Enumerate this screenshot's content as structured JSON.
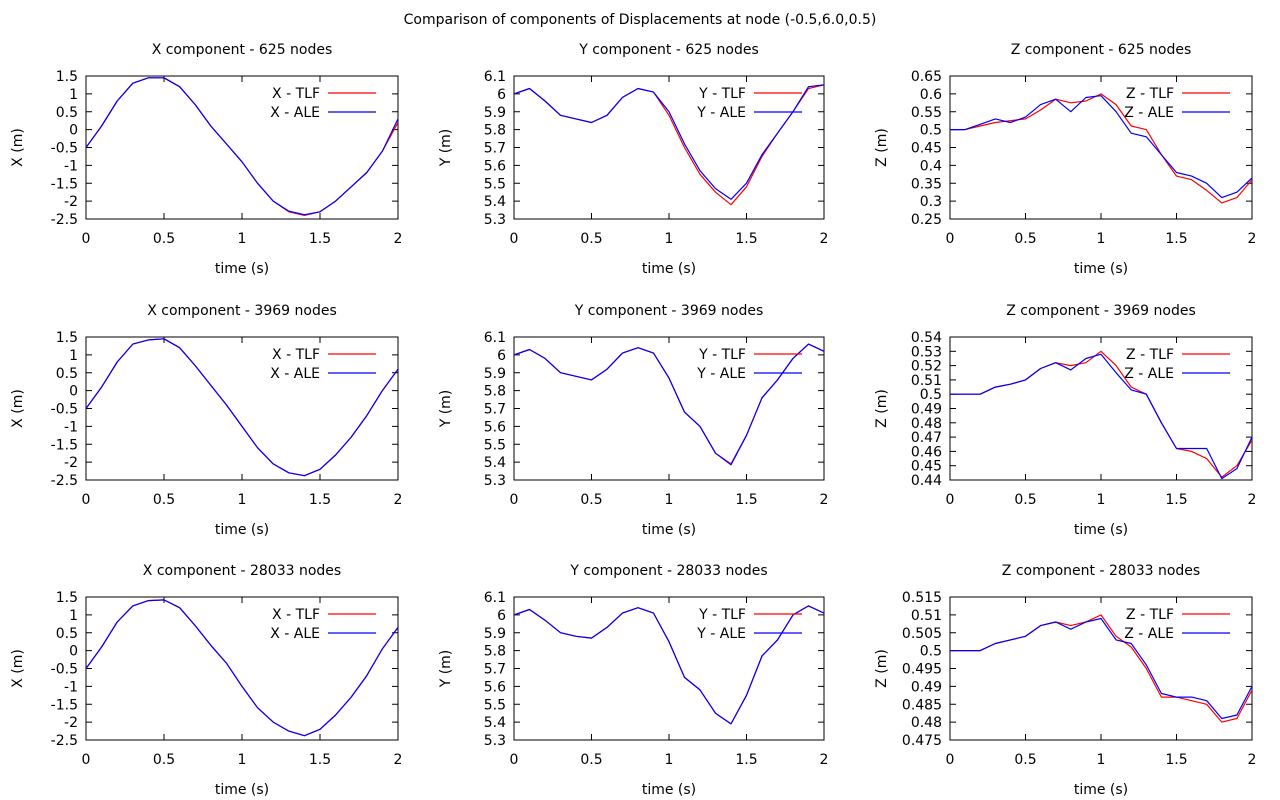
{
  "figure": {
    "title": "Comparison of components of Displacements at node (-0.5,6.0,0.5)"
  },
  "colors": {
    "TLF": "#ff0000",
    "ALE": "#0000ff",
    "axis": "#000000"
  },
  "chart_data": [
    {
      "type": "line",
      "title": "X component - 625 nodes",
      "xlabel": "time (s)",
      "ylabel": "X (m)",
      "xlim": [
        0,
        2
      ],
      "ylim": [
        -2.5,
        1.5
      ],
      "xticks": [
        0,
        0.5,
        1,
        1.5,
        2
      ],
      "yticks": [
        -2.5,
        -2,
        -1.5,
        -1,
        -0.5,
        0,
        0.5,
        1,
        1.5
      ],
      "legend": "top-right",
      "grid": false,
      "x": [
        0,
        0.1,
        0.2,
        0.3,
        0.4,
        0.5,
        0.6,
        0.7,
        0.8,
        0.9,
        1.0,
        1.1,
        1.2,
        1.3,
        1.4,
        1.5,
        1.6,
        1.7,
        1.8,
        1.9,
        2.0
      ],
      "series": [
        {
          "name": "X - TLF",
          "values": [
            -0.5,
            0.1,
            0.8,
            1.3,
            1.45,
            1.45,
            1.2,
            0.7,
            0.1,
            -0.4,
            -0.9,
            -1.5,
            -2.0,
            -2.3,
            -2.4,
            -2.3,
            -2.0,
            -1.6,
            -1.2,
            -0.6,
            0.2
          ]
        },
        {
          "name": "X - ALE",
          "values": [
            -0.5,
            0.1,
            0.8,
            1.3,
            1.45,
            1.45,
            1.2,
            0.7,
            0.1,
            -0.4,
            -0.9,
            -1.5,
            -2.0,
            -2.28,
            -2.38,
            -2.3,
            -2.0,
            -1.6,
            -1.2,
            -0.6,
            0.3
          ]
        }
      ]
    },
    {
      "type": "line",
      "title": "Y component - 625 nodes",
      "xlabel": "time (s)",
      "ylabel": "Y (m)",
      "xlim": [
        0,
        2
      ],
      "ylim": [
        5.3,
        6.1
      ],
      "xticks": [
        0,
        0.5,
        1,
        1.5,
        2
      ],
      "yticks": [
        5.3,
        5.4,
        5.5,
        5.6,
        5.7,
        5.8,
        5.9,
        6,
        6.1
      ],
      "legend": "top-right",
      "grid": false,
      "x": [
        0,
        0.1,
        0.2,
        0.3,
        0.4,
        0.5,
        0.6,
        0.7,
        0.8,
        0.9,
        1.0,
        1.1,
        1.2,
        1.3,
        1.4,
        1.5,
        1.6,
        1.7,
        1.8,
        1.9,
        2.0
      ],
      "series": [
        {
          "name": "Y - TLF",
          "values": [
            6.0,
            6.03,
            5.96,
            5.88,
            5.86,
            5.84,
            5.88,
            5.98,
            6.03,
            6.01,
            5.88,
            5.7,
            5.55,
            5.45,
            5.38,
            5.48,
            5.65,
            5.78,
            5.9,
            6.03,
            6.05
          ]
        },
        {
          "name": "Y - ALE",
          "values": [
            6.0,
            6.03,
            5.96,
            5.88,
            5.86,
            5.84,
            5.88,
            5.98,
            6.03,
            6.01,
            5.9,
            5.72,
            5.57,
            5.47,
            5.41,
            5.5,
            5.66,
            5.78,
            5.9,
            6.04,
            6.05
          ]
        }
      ]
    },
    {
      "type": "line",
      "title": "Z component - 625 nodes",
      "xlabel": "time (s)",
      "ylabel": "Z (m)",
      "xlim": [
        0,
        2
      ],
      "ylim": [
        0.25,
        0.65
      ],
      "xticks": [
        0,
        0.5,
        1,
        1.5,
        2
      ],
      "yticks": [
        0.25,
        0.3,
        0.35,
        0.4,
        0.45,
        0.5,
        0.55,
        0.6,
        0.65
      ],
      "legend": "top-right",
      "grid": false,
      "x": [
        0,
        0.1,
        0.2,
        0.3,
        0.4,
        0.5,
        0.6,
        0.7,
        0.8,
        0.9,
        1.0,
        1.1,
        1.2,
        1.3,
        1.4,
        1.5,
        1.6,
        1.7,
        1.8,
        1.9,
        2.0
      ],
      "series": [
        {
          "name": "Z - TLF",
          "values": [
            0.5,
            0.5,
            0.51,
            0.52,
            0.525,
            0.53,
            0.555,
            0.585,
            0.575,
            0.58,
            0.6,
            0.57,
            0.51,
            0.5,
            0.43,
            0.37,
            0.36,
            0.33,
            0.295,
            0.31,
            0.36
          ]
        },
        {
          "name": "Z - ALE",
          "values": [
            0.5,
            0.5,
            0.515,
            0.53,
            0.52,
            0.535,
            0.57,
            0.585,
            0.55,
            0.59,
            0.595,
            0.55,
            0.49,
            0.48,
            0.43,
            0.38,
            0.37,
            0.35,
            0.31,
            0.325,
            0.365
          ]
        }
      ]
    },
    {
      "type": "line",
      "title": "X component - 3969 nodes",
      "xlabel": "time (s)",
      "ylabel": "X (m)",
      "xlim": [
        0,
        2
      ],
      "ylim": [
        -2.5,
        1.5
      ],
      "xticks": [
        0,
        0.5,
        1,
        1.5,
        2
      ],
      "yticks": [
        -2.5,
        -2,
        -1.5,
        -1,
        -0.5,
        0,
        0.5,
        1,
        1.5
      ],
      "legend": "top-right",
      "grid": false,
      "x": [
        0,
        0.1,
        0.2,
        0.3,
        0.4,
        0.5,
        0.6,
        0.7,
        0.8,
        0.9,
        1.0,
        1.1,
        1.2,
        1.3,
        1.4,
        1.5,
        1.6,
        1.7,
        1.8,
        1.9,
        2.0
      ],
      "series": [
        {
          "name": "X - TLF",
          "values": [
            -0.5,
            0.1,
            0.8,
            1.3,
            1.42,
            1.45,
            1.2,
            0.7,
            0.15,
            -0.4,
            -1.0,
            -1.6,
            -2.05,
            -2.3,
            -2.38,
            -2.2,
            -1.8,
            -1.3,
            -0.7,
            0.0,
            0.6
          ]
        },
        {
          "name": "X - ALE",
          "values": [
            -0.5,
            0.1,
            0.8,
            1.3,
            1.42,
            1.45,
            1.2,
            0.7,
            0.15,
            -0.4,
            -1.0,
            -1.6,
            -2.05,
            -2.3,
            -2.38,
            -2.2,
            -1.8,
            -1.3,
            -0.7,
            0.0,
            0.6
          ]
        }
      ]
    },
    {
      "type": "line",
      "title": "Y component - 3969 nodes",
      "xlabel": "time (s)",
      "ylabel": "Y (m)",
      "xlim": [
        0,
        2
      ],
      "ylim": [
        5.3,
        6.1
      ],
      "xticks": [
        0,
        0.5,
        1,
        1.5,
        2
      ],
      "yticks": [
        5.3,
        5.4,
        5.5,
        5.6,
        5.7,
        5.8,
        5.9,
        6,
        6.1
      ],
      "legend": "top-right",
      "grid": false,
      "x": [
        0,
        0.1,
        0.2,
        0.3,
        0.4,
        0.5,
        0.6,
        0.7,
        0.8,
        0.9,
        1.0,
        1.1,
        1.2,
        1.3,
        1.4,
        1.5,
        1.6,
        1.7,
        1.8,
        1.9,
        2.0
      ],
      "series": [
        {
          "name": "Y - TLF",
          "values": [
            6.0,
            6.03,
            5.98,
            5.9,
            5.88,
            5.86,
            5.92,
            6.01,
            6.04,
            6.01,
            5.87,
            5.68,
            5.6,
            5.45,
            5.39,
            5.55,
            5.76,
            5.86,
            5.98,
            6.06,
            6.02
          ]
        },
        {
          "name": "Y - ALE",
          "values": [
            6.0,
            6.03,
            5.98,
            5.9,
            5.88,
            5.86,
            5.92,
            6.01,
            6.04,
            6.01,
            5.87,
            5.68,
            5.6,
            5.45,
            5.385,
            5.55,
            5.76,
            5.86,
            5.98,
            6.06,
            6.02
          ]
        }
      ]
    },
    {
      "type": "line",
      "title": "Z component - 3969 nodes",
      "xlabel": "time (s)",
      "ylabel": "Z (m)",
      "xlim": [
        0,
        2
      ],
      "ylim": [
        0.44,
        0.54
      ],
      "xticks": [
        0,
        0.5,
        1,
        1.5,
        2
      ],
      "yticks": [
        0.44,
        0.45,
        0.46,
        0.47,
        0.48,
        0.49,
        0.5,
        0.51,
        0.52,
        0.53,
        0.54
      ],
      "legend": "top-right",
      "grid": false,
      "x": [
        0,
        0.1,
        0.2,
        0.3,
        0.4,
        0.5,
        0.6,
        0.7,
        0.8,
        0.9,
        1.0,
        1.1,
        1.2,
        1.3,
        1.4,
        1.5,
        1.6,
        1.7,
        1.8,
        1.9,
        2.0
      ],
      "series": [
        {
          "name": "Z - TLF",
          "values": [
            0.5,
            0.5,
            0.5,
            0.505,
            0.507,
            0.51,
            0.518,
            0.522,
            0.52,
            0.522,
            0.53,
            0.52,
            0.505,
            0.5,
            0.48,
            0.462,
            0.46,
            0.455,
            0.442,
            0.45,
            0.468
          ]
        },
        {
          "name": "Z - ALE",
          "values": [
            0.5,
            0.5,
            0.5,
            0.505,
            0.507,
            0.51,
            0.518,
            0.522,
            0.517,
            0.525,
            0.528,
            0.515,
            0.503,
            0.5,
            0.48,
            0.462,
            0.462,
            0.462,
            0.441,
            0.448,
            0.47
          ]
        }
      ]
    },
    {
      "type": "line",
      "title": "X component - 28033 nodes",
      "xlabel": "time (s)",
      "ylabel": "X (m)",
      "xlim": [
        0,
        2
      ],
      "ylim": [
        -2.5,
        1.5
      ],
      "xticks": [
        0,
        0.5,
        1,
        1.5,
        2
      ],
      "yticks": [
        -2.5,
        -2,
        -1.5,
        -1,
        -0.5,
        0,
        0.5,
        1,
        1.5
      ],
      "legend": "top-right",
      "grid": false,
      "x": [
        0,
        0.1,
        0.2,
        0.3,
        0.4,
        0.5,
        0.6,
        0.7,
        0.8,
        0.9,
        1.0,
        1.1,
        1.2,
        1.3,
        1.4,
        1.5,
        1.6,
        1.7,
        1.8,
        1.9,
        2.0
      ],
      "series": [
        {
          "name": "X - TLF",
          "values": [
            -0.5,
            0.1,
            0.8,
            1.25,
            1.4,
            1.42,
            1.2,
            0.7,
            0.15,
            -0.35,
            -1.0,
            -1.6,
            -2.0,
            -2.25,
            -2.38,
            -2.2,
            -1.8,
            -1.3,
            -0.7,
            0.05,
            0.65
          ]
        },
        {
          "name": "X - ALE",
          "values": [
            -0.5,
            0.1,
            0.8,
            1.25,
            1.4,
            1.42,
            1.2,
            0.7,
            0.15,
            -0.35,
            -1.0,
            -1.6,
            -2.0,
            -2.25,
            -2.38,
            -2.2,
            -1.8,
            -1.3,
            -0.7,
            0.05,
            0.65
          ]
        }
      ]
    },
    {
      "type": "line",
      "title": "Y component - 28033 nodes",
      "xlabel": "time (s)",
      "ylabel": "Y (m)",
      "xlim": [
        0,
        2
      ],
      "ylim": [
        5.3,
        6.1
      ],
      "xticks": [
        0,
        0.5,
        1,
        1.5,
        2
      ],
      "yticks": [
        5.3,
        5.4,
        5.5,
        5.6,
        5.7,
        5.8,
        5.9,
        6,
        6.1
      ],
      "legend": "top-right",
      "grid": false,
      "x": [
        0,
        0.1,
        0.2,
        0.3,
        0.4,
        0.5,
        0.6,
        0.7,
        0.8,
        0.9,
        1.0,
        1.1,
        1.2,
        1.3,
        1.4,
        1.5,
        1.6,
        1.7,
        1.8,
        1.9,
        2.0
      ],
      "series": [
        {
          "name": "Y - TLF",
          "values": [
            6.0,
            6.03,
            5.97,
            5.9,
            5.88,
            5.87,
            5.93,
            6.01,
            6.04,
            6.01,
            5.85,
            5.65,
            5.58,
            5.45,
            5.39,
            5.55,
            5.77,
            5.86,
            6.0,
            6.05,
            6.01
          ]
        },
        {
          "name": "Y - ALE",
          "values": [
            6.0,
            6.03,
            5.97,
            5.9,
            5.88,
            5.87,
            5.93,
            6.01,
            6.04,
            6.01,
            5.85,
            5.65,
            5.58,
            5.45,
            5.39,
            5.55,
            5.77,
            5.86,
            6.0,
            6.05,
            6.01
          ]
        }
      ]
    },
    {
      "type": "line",
      "title": "Z component - 28033 nodes",
      "xlabel": "time (s)",
      "ylabel": "Z (m)",
      "xlim": [
        0,
        2
      ],
      "ylim": [
        0.475,
        0.515
      ],
      "xticks": [
        0,
        0.5,
        1,
        1.5,
        2
      ],
      "yticks": [
        0.475,
        0.48,
        0.485,
        0.49,
        0.495,
        0.5,
        0.505,
        0.51,
        0.515
      ],
      "legend": "top-right",
      "grid": false,
      "x": [
        0,
        0.1,
        0.2,
        0.3,
        0.4,
        0.5,
        0.6,
        0.7,
        0.8,
        0.9,
        1.0,
        1.1,
        1.2,
        1.3,
        1.4,
        1.5,
        1.6,
        1.7,
        1.8,
        1.9,
        2.0
      ],
      "series": [
        {
          "name": "Z - TLF",
          "values": [
            0.5,
            0.5,
            0.5,
            0.502,
            0.503,
            0.504,
            0.507,
            0.508,
            0.507,
            0.508,
            0.51,
            0.504,
            0.501,
            0.495,
            0.487,
            0.487,
            0.486,
            0.485,
            0.48,
            0.481,
            0.489
          ]
        },
        {
          "name": "Z - ALE",
          "values": [
            0.5,
            0.5,
            0.5,
            0.502,
            0.503,
            0.504,
            0.507,
            0.508,
            0.506,
            0.508,
            0.509,
            0.503,
            0.502,
            0.496,
            0.488,
            0.487,
            0.487,
            0.486,
            0.481,
            0.482,
            0.49
          ]
        }
      ]
    }
  ]
}
